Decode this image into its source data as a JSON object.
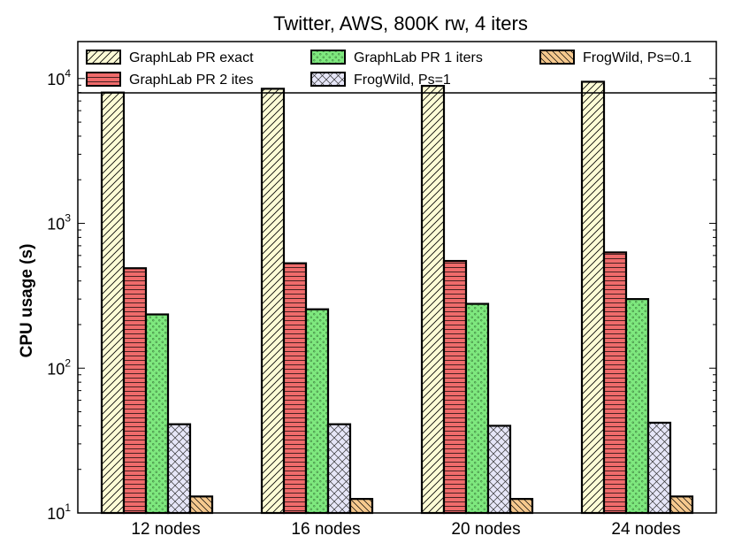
{
  "chart_data": {
    "type": "bar",
    "title": "Twitter, AWS, 800K rw, 4 iters",
    "xlabel": "",
    "ylabel": "CPU usage (s)",
    "yscale": "log",
    "ylim": [
      10,
      18000
    ],
    "yticks": [
      {
        "value": 10,
        "base": "10",
        "exp": "1"
      },
      {
        "value": 100,
        "base": "10",
        "exp": "2"
      },
      {
        "value": 1000,
        "base": "10",
        "exp": "3"
      },
      {
        "value": 10000,
        "base": "10",
        "exp": "4"
      }
    ],
    "categories": [
      "12 nodes",
      "16 nodes",
      "20 nodes",
      "24 nodes"
    ],
    "series": [
      {
        "name": "GraphLab PR exact",
        "color": "#fdfcd6",
        "pattern": "diag",
        "values": [
          8000,
          8500,
          8900,
          9500
        ]
      },
      {
        "name": "GraphLab PR 2 ites",
        "color": "#ef6b6b",
        "pattern": "hlines",
        "values": [
          490,
          530,
          550,
          630
        ]
      },
      {
        "name": "GraphLab PR 1 iters",
        "color": "#7ee87e",
        "pattern": "dots",
        "values": [
          235,
          255,
          278,
          300
        ]
      },
      {
        "name": "FrogWild, Ps=1",
        "color": "#e6e6f8",
        "pattern": "cross",
        "values": [
          41,
          41,
          40,
          42
        ]
      },
      {
        "name": "FrogWild, Ps=0.1",
        "color": "#f6c98e",
        "pattern": "backdiag",
        "values": [
          13,
          12.5,
          12.5,
          13
        ]
      }
    ],
    "legend": {
      "placement": "top",
      "columns": 3,
      "order": [
        0,
        1,
        2,
        3,
        4
      ]
    }
  }
}
